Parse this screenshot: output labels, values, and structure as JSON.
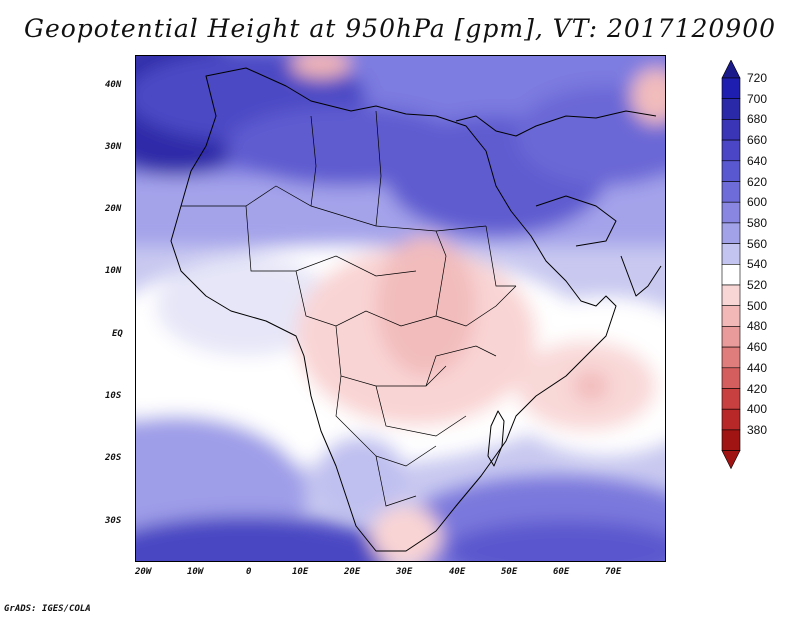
{
  "title": "Geopotential Height at 950hPa [gpm], VT: 2017120900",
  "footer": "GrADS: IGES/COLA",
  "lat_labels": [
    "40N",
    "30N",
    "20N",
    "10N",
    "EQ",
    "10S",
    "20S",
    "30S"
  ],
  "lon_labels": [
    "20W",
    "10W",
    "0",
    "10E",
    "20E",
    "30E",
    "40E",
    "50E",
    "60E",
    "70E"
  ],
  "colorbar": {
    "levels": [
      "720",
      "700",
      "680",
      "660",
      "640",
      "620",
      "600",
      "580",
      "560",
      "540",
      "520",
      "500",
      "480",
      "460",
      "440",
      "420",
      "400",
      "380"
    ],
    "colors": [
      "#1e1eb0",
      "#2a2aa8",
      "#3a34b6",
      "#4a46c6",
      "#5a58d0",
      "#6e6cd8",
      "#8886e0",
      "#a2a2e8",
      "#c4c4f0",
      "#ffffff",
      "#f9d6d6",
      "#f2b8b8",
      "#e99a9a",
      "#df7c7c",
      "#d45e5e",
      "#c84040",
      "#b82828",
      "#a01414"
    ],
    "top_color": "#1a1a8a",
    "bottom_color": "#a01414"
  },
  "chart_data": {
    "type": "heatmap",
    "title": "Geopotential Height at 950hPa [gpm], VT: 2017120900",
    "variable": "Geopotential Height",
    "level": "950hPa",
    "units": "gpm",
    "valid_time": "2017120900",
    "lon_range": [
      -20,
      80
    ],
    "lat_range": [
      -37,
      45
    ],
    "colorbar_range": [
      380,
      720
    ],
    "colorbar_step": 20
  }
}
